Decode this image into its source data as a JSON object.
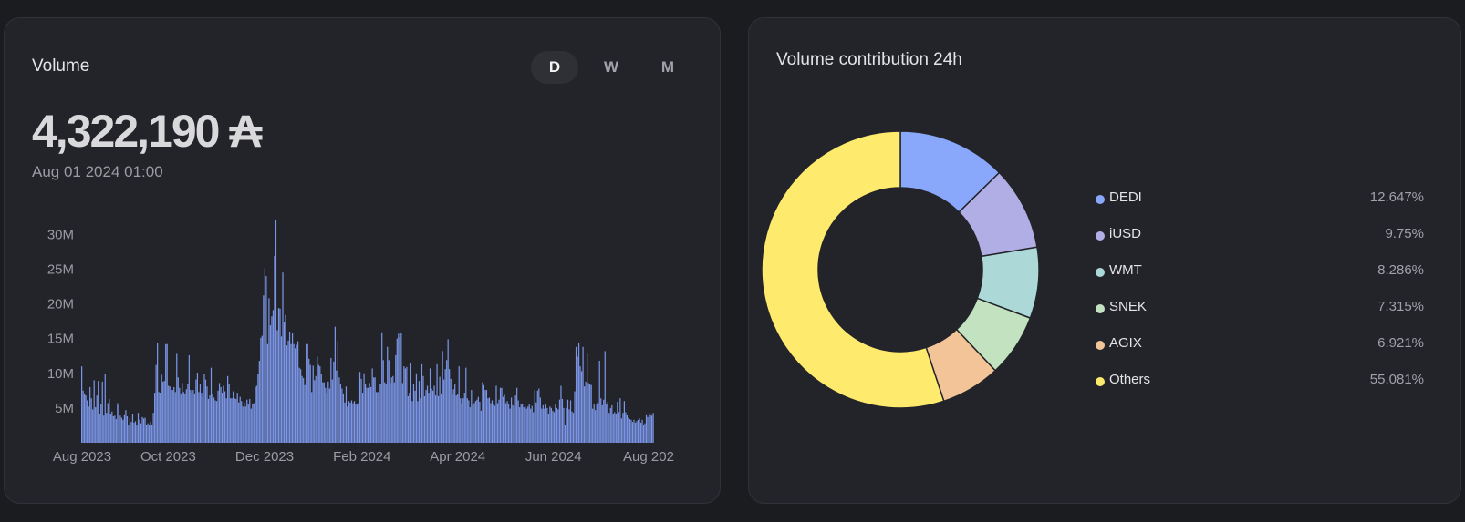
{
  "volume_card": {
    "title": "Volume",
    "toggles": [
      "D",
      "W",
      "M"
    ],
    "active_toggle": "D",
    "value": "4,322,190 ₳",
    "date": "Aug 01 2024 01:00"
  },
  "contribution_card": {
    "title": "Volume contribution 24h"
  },
  "chart_data": [
    {
      "type": "bar",
      "title": "Volume",
      "color": "#7b96e8",
      "ylim": [
        0,
        32000000
      ],
      "y_ticks": [
        {
          "value": 5000000,
          "label": "5M"
        },
        {
          "value": 10000000,
          "label": "10M"
        },
        {
          "value": 15000000,
          "label": "15M"
        },
        {
          "value": 20000000,
          "label": "20M"
        },
        {
          "value": 25000000,
          "label": "25M"
        },
        {
          "value": 30000000,
          "label": "30M"
        }
      ],
      "x_tick_labels": [
        "Aug 2023",
        "Oct 2023",
        "Dec 2023",
        "Feb 2024",
        "Apr 2024",
        "Jun 2024",
        "Aug 202"
      ],
      "x_tick_fractions": [
        0.0,
        0.152,
        0.322,
        0.494,
        0.663,
        0.832,
        1.0
      ],
      "grid": false,
      "values": [
        11.0,
        7.5,
        7.1,
        6.8,
        6.1,
        5.2,
        8.0,
        6.4,
        4.8,
        9.0,
        5.1,
        6.8,
        8.9,
        4.2,
        5.6,
        8.8,
        3.9,
        9.9,
        4.3,
        5.7,
        6.3,
        4.2,
        4.5,
        3.8,
        3.9,
        3.4,
        5.7,
        5.4,
        3.9,
        3.6,
        3.3,
        4.1,
        4.7,
        3.8,
        2.6,
        3.6,
        3.0,
        4.2,
        2.9,
        3.1,
        2.5,
        4.3,
        3.3,
        2.8,
        3.7,
        3.5,
        3.6,
        2.6,
        2.8,
        2.5,
        3.0,
        2.6,
        4.3,
        7.2,
        11.2,
        14.4,
        7.3,
        7.2,
        9.8,
        8.8,
        8.9,
        14.2,
        14.2,
        8.2,
        8.1,
        7.6,
        7.6,
        8.0,
        7.3,
        12.8,
        9.4,
        7.9,
        7.1,
        8.6,
        7.3,
        7.1,
        7.7,
        8.4,
        12.6,
        7.6,
        7.2,
        7.6,
        7.1,
        9.1,
        10.1,
        7.3,
        8.5,
        7.2,
        6.6,
        9.9,
        9.1,
        8.1,
        6.3,
        6.8,
        10.8,
        7.0,
        6.5,
        6.1,
        6.0,
        7.5,
        8.6,
        8.0,
        7.2,
        8.2,
        7.4,
        6.4,
        9.6,
        8.4,
        6.4,
        6.4,
        7.4,
        6.4,
        6.3,
        7.2,
        5.8,
        6.6,
        6.0,
        5.2,
        5.8,
        5.2,
        6.2,
        5.5,
        6.3,
        4.9,
        5.6,
        5.7,
        8.0,
        8.2,
        9.9,
        11.8,
        15.1,
        15.4,
        21.2,
        25.1,
        24.0,
        14.2,
        20.8,
        16.9,
        18.2,
        19.1,
        26.9,
        32.1,
        16.2,
        19.4,
        19.3,
        15.3,
        24.5,
        17.3,
        18.4,
        14.0,
        14.7,
        16.0,
        14.2,
        15.8,
        14.2,
        13.6,
        14.1,
        14.6,
        10.8,
        10.6,
        9.6,
        9.3,
        8.3,
        14.2,
        14.2,
        12.1,
        11.2,
        7.3,
        11.1,
        9.0,
        9.6,
        12.4,
        11.2,
        11.0,
        9.9,
        8.7,
        8.7,
        7.9,
        7.2,
        8.8,
        7.8,
        12.2,
        9.1,
        11.7,
        16.7,
        10.4,
        14.6,
        9.4,
        8.4,
        7.8,
        7.1,
        5.8,
        8.1,
        5.2,
        6.0,
        5.8,
        6.1,
        5.7,
        6.0,
        5.5,
        5.5,
        5.7,
        10.2,
        9.2,
        7.2,
        10.0,
        8.4,
        7.9,
        7.9,
        8.6,
        8.0,
        10.7,
        9.4,
        9.4,
        7.3,
        7.3,
        8.5,
        8.4,
        15.9,
        11.9,
        8.7,
        8.4,
        13.8,
        11.9,
        8.6,
        9.4,
        9.6,
        8.7,
        12.6,
        15.0,
        15.7,
        15.2,
        15.8,
        8.6,
        11.0,
        10.7,
        10.9,
        6.7,
        7.2,
        11.5,
        6.0,
        8.5,
        7.5,
        10.0,
        6.0,
        8.9,
        6.4,
        11.3,
        9.6,
        6.7,
        7.6,
        8.2,
        7.2,
        10.7,
        7.8,
        7.5,
        8.2,
        6.8,
        11.3,
        6.7,
        9.5,
        7.1,
        13.2,
        9.1,
        10.6,
        11.9,
        14.9,
        10.6,
        9.2,
        7.0,
        7.7,
        8.4,
        6.8,
        7.0,
        11.0,
        6.4,
        5.7,
        6.4,
        7.2,
        10.8,
        6.4,
        6.1,
        5.1,
        7.6,
        5.4,
        5.7,
        6.0,
        6.2,
        6.6,
        5.9,
        4.6,
        8.7,
        8.3,
        7.6,
        7.6,
        6.4,
        6.5,
        5.7,
        6.1,
        5.5,
        5.3,
        8.2,
        5.7,
        6.2,
        7.9,
        7.9,
        6.6,
        6.9,
        5.7,
        6.0,
        5.5,
        4.9,
        6.5,
        5.4,
        5.2,
        6.8,
        7.9,
        6.1,
        5.1,
        5.6,
        5.6,
        5.1,
        5.3,
        4.9,
        5.2,
        5.5,
        4.9,
        5.3,
        4.4,
        7.6,
        5.8,
        7.5,
        7.8,
        6.5,
        4.9,
        5.4,
        4.9,
        5.5,
        5.0,
        4.2,
        5.2,
        5.0,
        4.6,
        4.4,
        5.5,
        5.0,
        4.8,
        6.2,
        8.2,
        6.3,
        5.0,
        2.5,
        5.0,
        6.2,
        4.8,
        6.1,
        4.5,
        4.3,
        7.4,
        13.8,
        12.4,
        14.3,
        11.0,
        10.3,
        13.8,
        8.1,
        8.8,
        12.8,
        8.6,
        8.4,
        8.3,
        4.9,
        5.5,
        4.7,
        5.6,
        5.7,
        11.8,
        6.4,
        5.4,
        6.2,
        13.2,
        5.6,
        5.9,
        4.3,
        5.0,
        5.4,
        4.2,
        4.4,
        4.2,
        5.9,
        4.4,
        6.4,
        3.5,
        4.3,
        6.0,
        4.4,
        4.0,
        3.6,
        3.4,
        3.3,
        3.0,
        3.3,
        2.9,
        3.1,
        3.3,
        3.5,
        2.9,
        3.3,
        2.5,
        2.8,
        4.1,
        3.7,
        4.3,
        4.1,
        3.9,
        4.3
      ]
    },
    {
      "type": "pie",
      "title": "Volume contribution 24h",
      "categories": [
        "DEDI",
        "iUSD",
        "WMT",
        "SNEK",
        "AGIX",
        "Others"
      ],
      "values": [
        12.647,
        9.75,
        8.286,
        7.315,
        6.921,
        55.081
      ],
      "labels": [
        "12.647%",
        "9.75%",
        "8.286%",
        "7.315%",
        "6.921%",
        "55.081%"
      ],
      "colors": [
        "#8aa8fb",
        "#b1aee6",
        "#acd8d8",
        "#c3e2bf",
        "#f3c497",
        "#feea6d"
      ],
      "legend": "right"
    }
  ]
}
